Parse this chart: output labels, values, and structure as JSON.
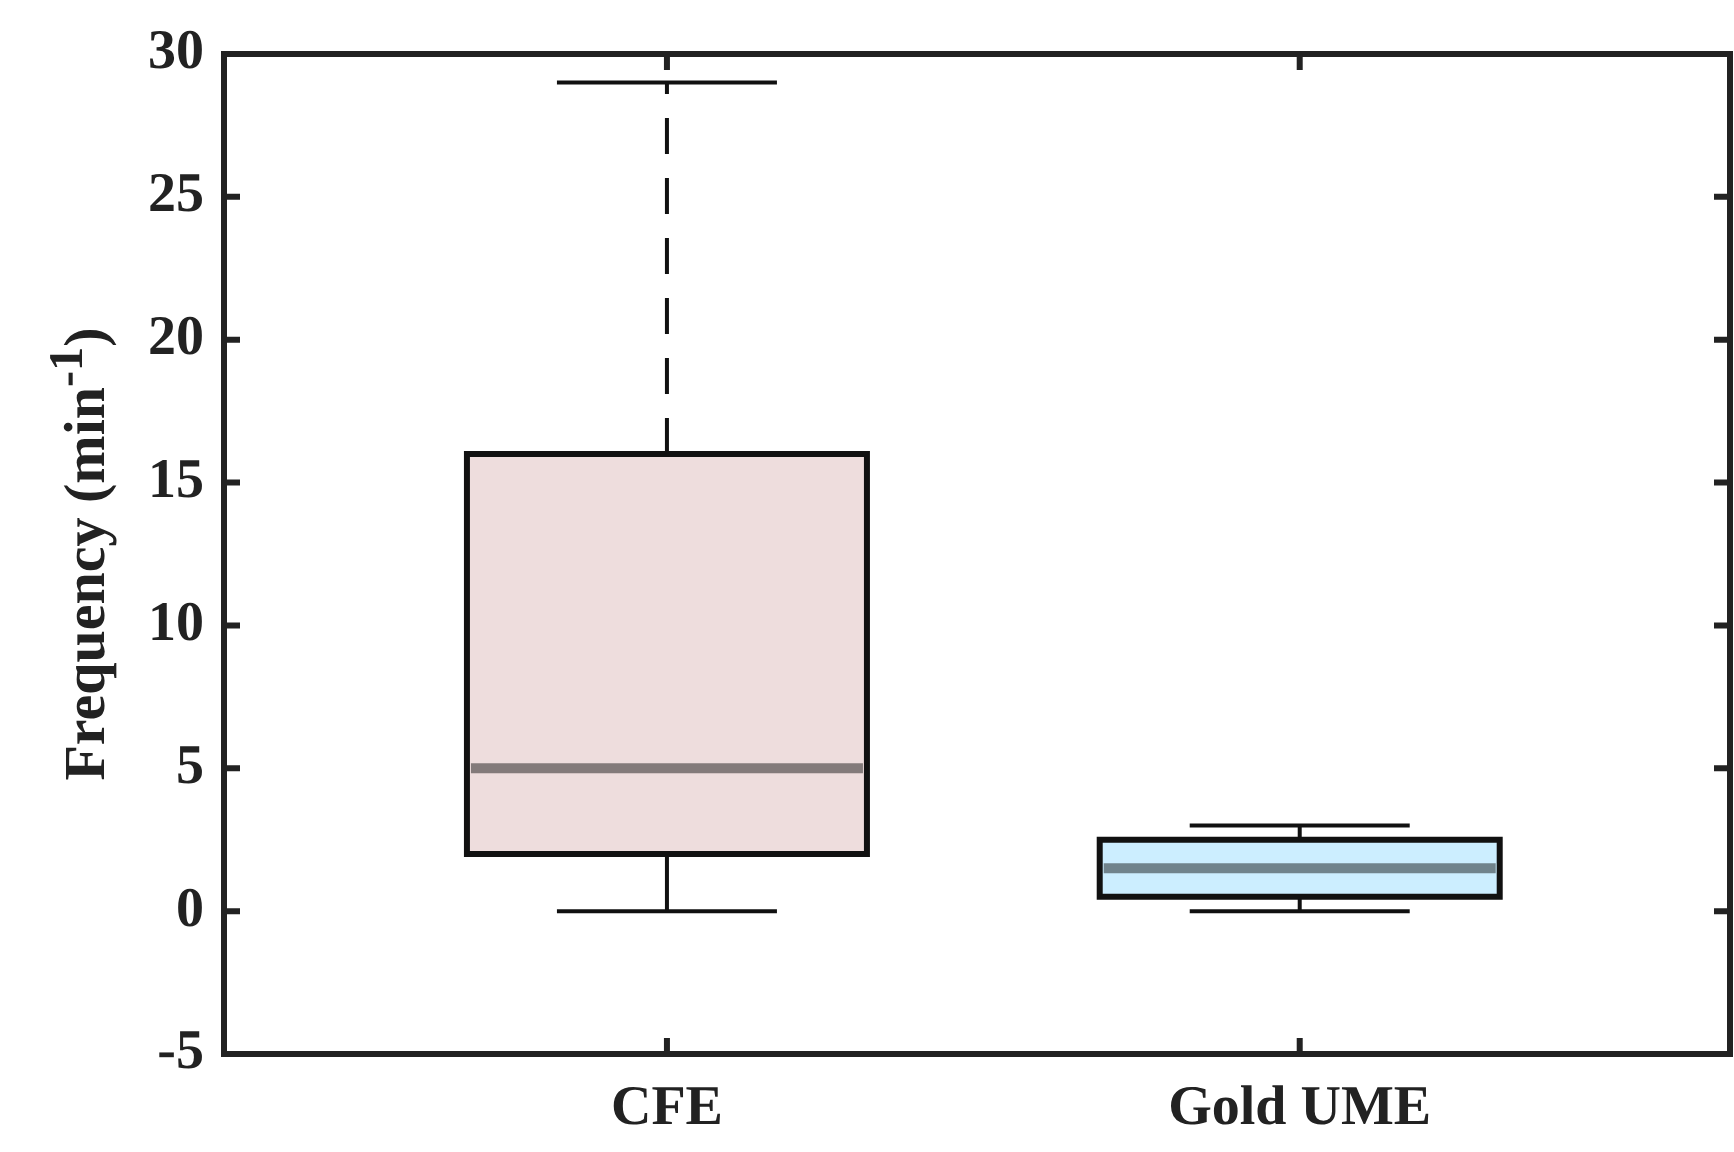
{
  "chart_data": {
    "type": "box",
    "ylabel": "Frequency (min$^{-1}$)",
    "categories": [
      "CFE",
      "Gold UME"
    ],
    "boxes": [
      {
        "low": 0,
        "q1": 2,
        "median": 5,
        "q3": 16,
        "high": 29
      },
      {
        "low": 0,
        "q1": 0.5,
        "median": 1.5,
        "q3": 2.5,
        "high": 3
      }
    ],
    "colors": [
      "#eedddd",
      "#cceeff"
    ],
    "ylim": [
      -5,
      30
    ],
    "yticks": [
      -5,
      0,
      5,
      10,
      15,
      20,
      25,
      30
    ],
    "grid": false,
    "legend": false
  }
}
